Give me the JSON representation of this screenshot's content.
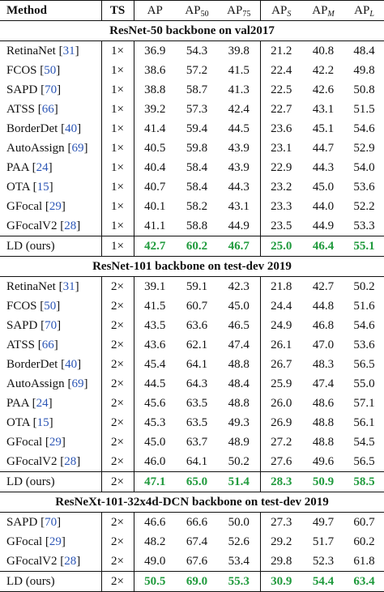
{
  "headers": {
    "method": "Method",
    "ts": "TS",
    "ap": "AP",
    "ap50": {
      "main": "AP",
      "sub": "50"
    },
    "ap75": {
      "main": "AP",
      "sub": "75"
    },
    "aps": {
      "main": "AP",
      "sub": "S"
    },
    "apm": {
      "main": "AP",
      "sub": "M"
    },
    "apl": {
      "main": "AP",
      "sub": "L"
    }
  },
  "sections": [
    {
      "title": "ResNet-50 backbone on val2017",
      "rows": [
        {
          "name": "RetinaNet",
          "ref": "31",
          "ts": "1×",
          "vals": [
            "36.9",
            "54.3",
            "39.8",
            "21.2",
            "40.8",
            "48.4"
          ]
        },
        {
          "name": "FCOS",
          "ref": "50",
          "ts": "1×",
          "vals": [
            "38.6",
            "57.2",
            "41.5",
            "22.4",
            "42.2",
            "49.8"
          ]
        },
        {
          "name": "SAPD",
          "ref": "70",
          "ts": "1×",
          "vals": [
            "38.8",
            "58.7",
            "41.3",
            "22.5",
            "42.6",
            "50.8"
          ]
        },
        {
          "name": "ATSS",
          "ref": "66",
          "ts": "1×",
          "vals": [
            "39.2",
            "57.3",
            "42.4",
            "22.7",
            "43.1",
            "51.5"
          ]
        },
        {
          "name": "BorderDet",
          "ref": "40",
          "ts": "1×",
          "vals": [
            "41.4",
            "59.4",
            "44.5",
            "23.6",
            "45.1",
            "54.6"
          ]
        },
        {
          "name": "AutoAssign",
          "ref": "69",
          "ts": "1×",
          "vals": [
            "40.5",
            "59.8",
            "43.9",
            "23.1",
            "44.7",
            "52.9"
          ]
        },
        {
          "name": "PAA",
          "ref": "24",
          "ts": "1×",
          "vals": [
            "40.4",
            "58.4",
            "43.9",
            "22.9",
            "44.3",
            "54.0"
          ]
        },
        {
          "name": "OTA",
          "ref": "15",
          "ts": "1×",
          "vals": [
            "40.7",
            "58.4",
            "44.3",
            "23.2",
            "45.0",
            "53.6"
          ]
        },
        {
          "name": "GFocal",
          "ref": "29",
          "ts": "1×",
          "vals": [
            "40.1",
            "58.2",
            "43.1",
            "23.3",
            "44.0",
            "52.2"
          ]
        },
        {
          "name": "GFocalV2",
          "ref": "28",
          "ts": "1×",
          "vals": [
            "41.1",
            "58.8",
            "44.9",
            "23.5",
            "44.9",
            "53.3"
          ]
        },
        {
          "name": "LD (ours)",
          "ref": "",
          "ts": "1×",
          "vals": [
            "42.7",
            "60.2",
            "46.7",
            "25.0",
            "46.4",
            "55.1"
          ],
          "ours": true
        }
      ]
    },
    {
      "title": "ResNet-101 backbone on test-dev 2019",
      "rows": [
        {
          "name": "RetinaNet",
          "ref": "31",
          "ts": "2×",
          "vals": [
            "39.1",
            "59.1",
            "42.3",
            "21.8",
            "42.7",
            "50.2"
          ]
        },
        {
          "name": "FCOS",
          "ref": "50",
          "ts": "2×",
          "vals": [
            "41.5",
            "60.7",
            "45.0",
            "24.4",
            "44.8",
            "51.6"
          ]
        },
        {
          "name": "SAPD",
          "ref": "70",
          "ts": "2×",
          "vals": [
            "43.5",
            "63.6",
            "46.5",
            "24.9",
            "46.8",
            "54.6"
          ]
        },
        {
          "name": "ATSS",
          "ref": "66",
          "ts": "2×",
          "vals": [
            "43.6",
            "62.1",
            "47.4",
            "26.1",
            "47.0",
            "53.6"
          ]
        },
        {
          "name": "BorderDet",
          "ref": "40",
          "ts": "2×",
          "vals": [
            "45.4",
            "64.1",
            "48.8",
            "26.7",
            "48.3",
            "56.5"
          ]
        },
        {
          "name": "AutoAssign",
          "ref": "69",
          "ts": "2×",
          "vals": [
            "44.5",
            "64.3",
            "48.4",
            "25.9",
            "47.4",
            "55.0"
          ]
        },
        {
          "name": "PAA",
          "ref": "24",
          "ts": "2×",
          "vals": [
            "45.6",
            "63.5",
            "48.8",
            "26.0",
            "48.6",
            "57.1"
          ]
        },
        {
          "name": "OTA",
          "ref": "15",
          "ts": "2×",
          "vals": [
            "45.3",
            "63.5",
            "49.3",
            "26.9",
            "48.8",
            "56.1"
          ]
        },
        {
          "name": "GFocal",
          "ref": "29",
          "ts": "2×",
          "vals": [
            "45.0",
            "63.7",
            "48.9",
            "27.2",
            "48.8",
            "54.5"
          ]
        },
        {
          "name": "GFocalV2",
          "ref": "28",
          "ts": "2×",
          "vals": [
            "46.0",
            "64.1",
            "50.2",
            "27.6",
            "49.6",
            "56.5"
          ]
        },
        {
          "name": "LD (ours)",
          "ref": "",
          "ts": "2×",
          "vals": [
            "47.1",
            "65.0",
            "51.4",
            "28.3",
            "50.9",
            "58.5"
          ],
          "ours": true
        }
      ]
    },
    {
      "title": "ResNeXt-101-32x4d-DCN backbone on test-dev 2019",
      "rows": [
        {
          "name": "SAPD",
          "ref": "70",
          "ts": "2×",
          "vals": [
            "46.6",
            "66.6",
            "50.0",
            "27.3",
            "49.7",
            "60.7"
          ]
        },
        {
          "name": "GFocal",
          "ref": "29",
          "ts": "2×",
          "vals": [
            "48.2",
            "67.4",
            "52.6",
            "29.2",
            "51.7",
            "60.2"
          ]
        },
        {
          "name": "GFocalV2",
          "ref": "28",
          "ts": "2×",
          "vals": [
            "49.0",
            "67.6",
            "53.4",
            "29.8",
            "52.3",
            "61.8"
          ]
        },
        {
          "name": "LD (ours)",
          "ref": "",
          "ts": "2×",
          "vals": [
            "50.5",
            "69.0",
            "55.3",
            "30.9",
            "54.4",
            "63.4"
          ],
          "ours": true
        }
      ]
    }
  ],
  "colors": {
    "best": "#1f9a3c",
    "ref": "#2b55b5",
    "rule": "#111111"
  }
}
